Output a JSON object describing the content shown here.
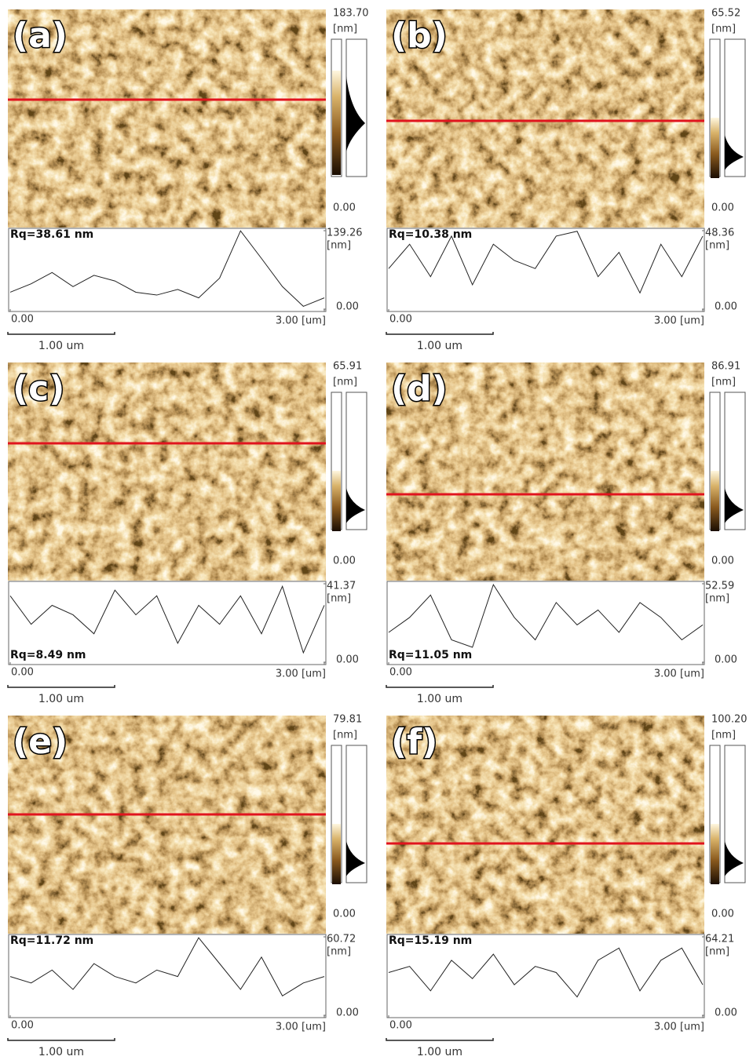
{
  "panels": [
    {
      "label": "(a)",
      "image_max": "183.70",
      "image_unit": "[nm]",
      "image_min": "0.00",
      "rq": "Rq=38.61 nm",
      "profile": {
        "unit": "[nm]",
        "ylim": [
          0,
          139.26
        ],
        "yticks": [
          {
            "value": 0,
            "label": "0.00"
          },
          {
            "value": 139.26,
            "label": "139.26"
          }
        ],
        "xlim": [
          0,
          3
        ],
        "xticks": [
          {
            "value": 0,
            "label": "0.00"
          },
          {
            "value": 3,
            "label": "3.00 [um]"
          }
        ],
        "x": [
          0,
          0.2,
          0.4,
          0.6,
          0.8,
          1,
          1.2,
          1.4,
          1.6,
          1.8,
          2,
          2.2,
          2.4,
          2.6,
          2.8,
          3
        ],
        "values": [
          30,
          45,
          65,
          40,
          60,
          50,
          30,
          25,
          35,
          20,
          55,
          139,
          90,
          40,
          5,
          20
        ]
      },
      "scale_bar": "1.00 um"
    },
    {
      "label": "(b)",
      "image_max": "65.52",
      "image_unit": "[nm]",
      "image_min": "0.00",
      "rq": "Rq=10.38 nm",
      "profile": {
        "unit": "[nm]",
        "ylim": [
          0,
          48.36
        ],
        "yticks": [
          {
            "value": 0,
            "label": "0.00"
          },
          {
            "value": 48.36,
            "label": "48.36"
          }
        ],
        "xlim": [
          0,
          3
        ],
        "xticks": [
          {
            "value": 0,
            "label": "0.00"
          },
          {
            "value": 3,
            "label": "3.00 [um]"
          }
        ],
        "x": [
          0,
          0.2,
          0.4,
          0.6,
          0.8,
          1,
          1.2,
          1.4,
          1.6,
          1.8,
          2,
          2.2,
          2.4,
          2.6,
          2.8,
          3
        ],
        "values": [
          25,
          40,
          20,
          45,
          15,
          40,
          30,
          25,
          45,
          48,
          20,
          35,
          10,
          40,
          20,
          45
        ]
      },
      "scale_bar": "1.00 um"
    },
    {
      "label": "(c)",
      "image_max": "65.91",
      "image_unit": "[nm]",
      "image_min": "0.00",
      "rq": "Rq=8.49 nm",
      "profile": {
        "unit": "[nm]",
        "ylim": [
          0,
          41.37
        ],
        "yticks": [
          {
            "value": 0,
            "label": "0.00"
          },
          {
            "value": 41.37,
            "label": "41.37"
          }
        ],
        "xlim": [
          0,
          3
        ],
        "xticks": [
          {
            "value": 0,
            "label": "0.00"
          },
          {
            "value": 3,
            "label": "3.00 [um]"
          }
        ],
        "x": [
          0,
          0.2,
          0.4,
          0.6,
          0.8,
          1,
          1.2,
          1.4,
          1.6,
          1.8,
          2,
          2.2,
          2.4,
          2.6,
          2.8,
          3
        ],
        "values": [
          35,
          20,
          30,
          25,
          15,
          38,
          25,
          35,
          10,
          30,
          20,
          35,
          15,
          40,
          5,
          30
        ]
      },
      "scale_bar": "1.00 um"
    },
    {
      "label": "(d)",
      "image_max": "86.91",
      "image_unit": "[nm]",
      "image_min": "0.00",
      "rq": "Rq=11.05 nm",
      "profile": {
        "unit": "[nm]",
        "ylim": [
          0,
          52.59
        ],
        "yticks": [
          {
            "value": 0,
            "label": "0.00"
          },
          {
            "value": 52.59,
            "label": "52.59"
          }
        ],
        "xlim": [
          0,
          3
        ],
        "xticks": [
          {
            "value": 0,
            "label": "0.00"
          },
          {
            "value": 3,
            "label": "3.00 [um]"
          }
        ],
        "x": [
          0,
          0.2,
          0.4,
          0.6,
          0.8,
          1,
          1.2,
          1.4,
          1.6,
          1.8,
          2,
          2.2,
          2.4,
          2.6,
          2.8,
          3
        ],
        "values": [
          20,
          30,
          45,
          15,
          10,
          52,
          30,
          15,
          40,
          25,
          35,
          20,
          40,
          30,
          15,
          25
        ]
      },
      "scale_bar": "1.00 um"
    },
    {
      "label": "(e)",
      "image_max": "79.81",
      "image_unit": "[nm]",
      "image_min": "0.00",
      "rq": "Rq=11.72 nm",
      "profile": {
        "unit": "[nm]",
        "ylim": [
          0,
          60.72
        ],
        "yticks": [
          {
            "value": 0,
            "label": "0.00"
          },
          {
            "value": 60.72,
            "label": "60.72"
          }
        ],
        "xlim": [
          0,
          3
        ],
        "xticks": [
          {
            "value": 0,
            "label": "0.00"
          },
          {
            "value": 3,
            "label": "3.00 [um]"
          }
        ],
        "x": [
          0,
          0.2,
          0.4,
          0.6,
          0.8,
          1,
          1.2,
          1.4,
          1.6,
          1.8,
          2,
          2.2,
          2.4,
          2.6,
          2.8,
          3
        ],
        "values": [
          30,
          25,
          35,
          20,
          40,
          30,
          25,
          35,
          30,
          60,
          40,
          20,
          45,
          15,
          25,
          30
        ]
      },
      "scale_bar": "1.00 um"
    },
    {
      "label": "(f)",
      "image_max": "100.20",
      "image_unit": "[nm]",
      "image_min": "0.00",
      "rq": "Rq=15.19 nm",
      "profile": {
        "unit": "[nm]",
        "ylim": [
          0,
          64.21
        ],
        "yticks": [
          {
            "value": 0,
            "label": "0.00"
          },
          {
            "value": 64.21,
            "label": "64.21"
          }
        ],
        "xlim": [
          0,
          3
        ],
        "xticks": [
          {
            "value": 0,
            "label": "0.00"
          },
          {
            "value": 3,
            "label": "3.00 [um]"
          }
        ],
        "x": [
          0,
          0.2,
          0.4,
          0.6,
          0.8,
          1,
          1.2,
          1.4,
          1.6,
          1.8,
          2,
          2.2,
          2.4,
          2.6,
          2.8,
          3
        ],
        "values": [
          35,
          40,
          20,
          45,
          30,
          50,
          25,
          40,
          35,
          15,
          45,
          55,
          20,
          45,
          55,
          25
        ]
      },
      "scale_bar": "1.00 um"
    }
  ]
}
